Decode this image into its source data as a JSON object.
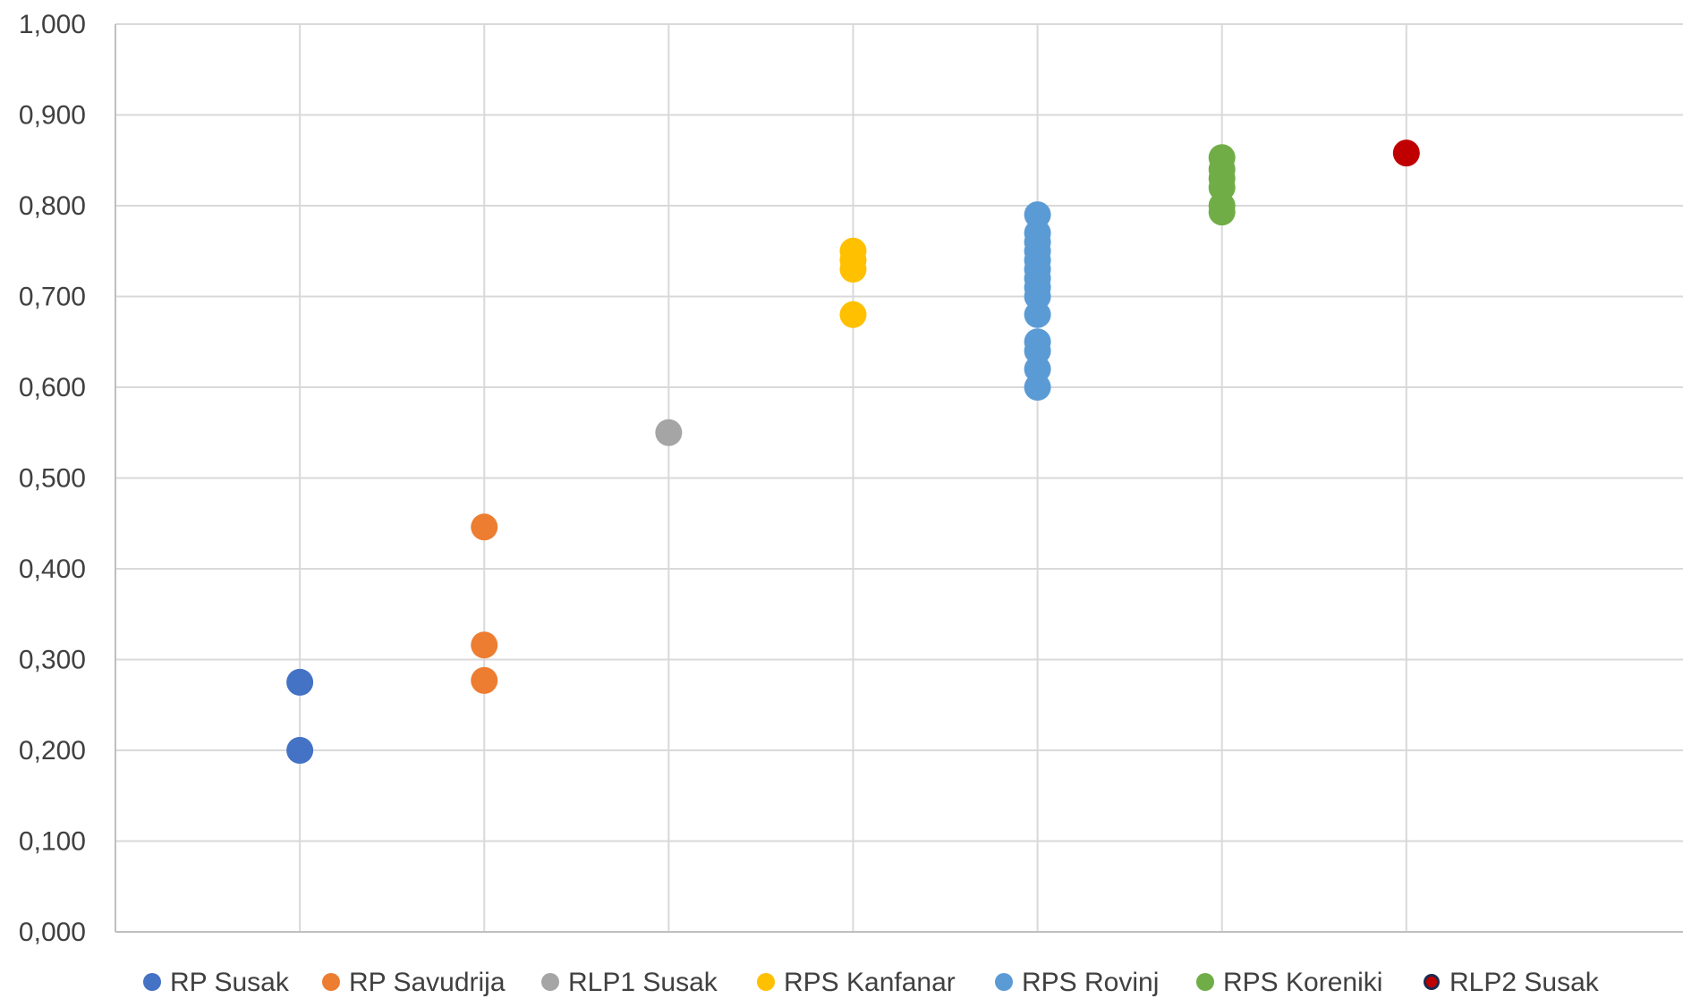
{
  "chart_data": {
    "type": "scatter",
    "title": "",
    "xlabel": "",
    "ylabel": "",
    "ylim": [
      0,
      1.0
    ],
    "yticks": [
      "0,000",
      "0,100",
      "0,200",
      "0,300",
      "0,400",
      "0,500",
      "0,600",
      "0,700",
      "0,800",
      "0,900",
      "1,000"
    ],
    "grid": true,
    "legend_position": "bottom",
    "series": [
      {
        "name": "RP Susak",
        "color": "#4472C4",
        "x": 1,
        "values": [
          0.275,
          0.2
        ]
      },
      {
        "name": "RP Savudrija",
        "color": "#ED7D31",
        "x": 2,
        "values": [
          0.446,
          0.316,
          0.277
        ]
      },
      {
        "name": "RLP1 Susak",
        "color": "#A5A5A5",
        "x": 3,
        "values": [
          0.55
        ]
      },
      {
        "name": "RPS Kanfanar",
        "color": "#FFC000",
        "x": 4,
        "values": [
          0.75,
          0.74,
          0.73,
          0.68
        ]
      },
      {
        "name": "RPS Rovinj",
        "color": "#5B9BD5",
        "x": 5,
        "values": [
          0.79,
          0.77,
          0.76,
          0.75,
          0.74,
          0.73,
          0.72,
          0.71,
          0.7,
          0.68,
          0.65,
          0.64,
          0.62,
          0.6
        ]
      },
      {
        "name": "RPS Koreniki",
        "color": "#70AD47",
        "x": 6,
        "values": [
          0.853,
          0.84,
          0.83,
          0.82,
          0.8,
          0.793
        ]
      },
      {
        "name": "RLP2 Susak",
        "color": "#C00000",
        "x": 7,
        "values": [
          0.858
        ]
      }
    ]
  }
}
